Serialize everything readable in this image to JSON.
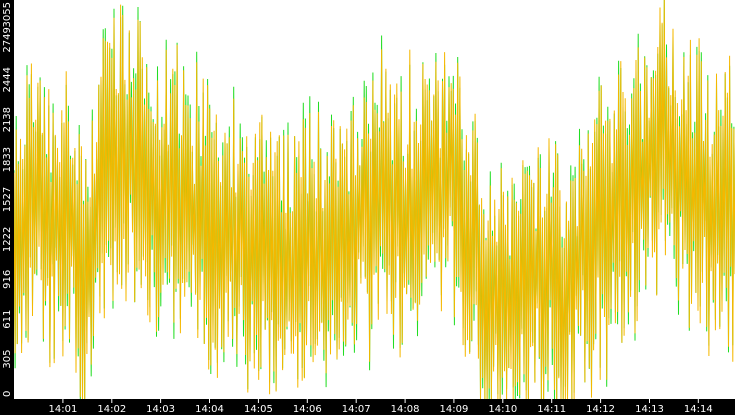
{
  "chart_data": {
    "type": "line",
    "title": "",
    "xlabel": "",
    "ylabel": "",
    "grid": false,
    "legend": "none",
    "colors": {
      "background": "#ffffff",
      "axis_band": "#000000",
      "axis_text": "#ffffff",
      "series_primary": "#f5b800",
      "series_secondary": "#22dd22"
    },
    "ylim": [
      0,
      3055
    ],
    "y_ticks": [
      "0",
      "305",
      "611",
      "916",
      "1222",
      "1527",
      "1833",
      "2138",
      "2444",
      "2749",
      "3055"
    ],
    "x_range_minutes": [
      0,
      14.75
    ],
    "x_ticks": [
      "14:01",
      "14:02",
      "14:03",
      "14:04",
      "14:05",
      "14:06",
      "14:07",
      "14:08",
      "14:09",
      "14:10",
      "14:11",
      "14:12",
      "14:13",
      "14:14"
    ],
    "x_tick_minutes": [
      1,
      2,
      3,
      4,
      5,
      6,
      7,
      8,
      9,
      10,
      11,
      12,
      13,
      14
    ],
    "series": [
      {
        "segments_per_minute": 45,
        "trend": [
          [
            0,
            1300
          ],
          [
            0.5,
            1650
          ],
          [
            0.8,
            1200
          ],
          [
            1.0,
            1400
          ],
          [
            1.5,
            950
          ],
          [
            1.8,
            1700
          ],
          [
            2.2,
            1900
          ],
          [
            2.6,
            1750
          ],
          [
            3.0,
            1600
          ],
          [
            3.5,
            1450
          ],
          [
            4.0,
            1350
          ],
          [
            4.5,
            1150
          ],
          [
            5.0,
            1250
          ],
          [
            5.5,
            1000
          ],
          [
            6.0,
            1100
          ],
          [
            6.5,
            1300
          ],
          [
            7.0,
            1350
          ],
          [
            7.5,
            1500
          ],
          [
            8.0,
            1400
          ],
          [
            8.5,
            1600
          ],
          [
            9.0,
            1750
          ],
          [
            9.3,
            1300
          ],
          [
            9.6,
            700
          ],
          [
            10.0,
            650
          ],
          [
            10.5,
            900
          ],
          [
            11.0,
            1050
          ],
          [
            11.3,
            800
          ],
          [
            11.6,
            1100
          ],
          [
            12.0,
            1300
          ],
          [
            12.5,
            1500
          ],
          [
            13.0,
            1750
          ],
          [
            13.3,
            2050
          ],
          [
            13.6,
            1700
          ],
          [
            14.0,
            1600
          ],
          [
            14.5,
            1450
          ],
          [
            14.75,
            1400
          ]
        ]
      }
    ]
  }
}
